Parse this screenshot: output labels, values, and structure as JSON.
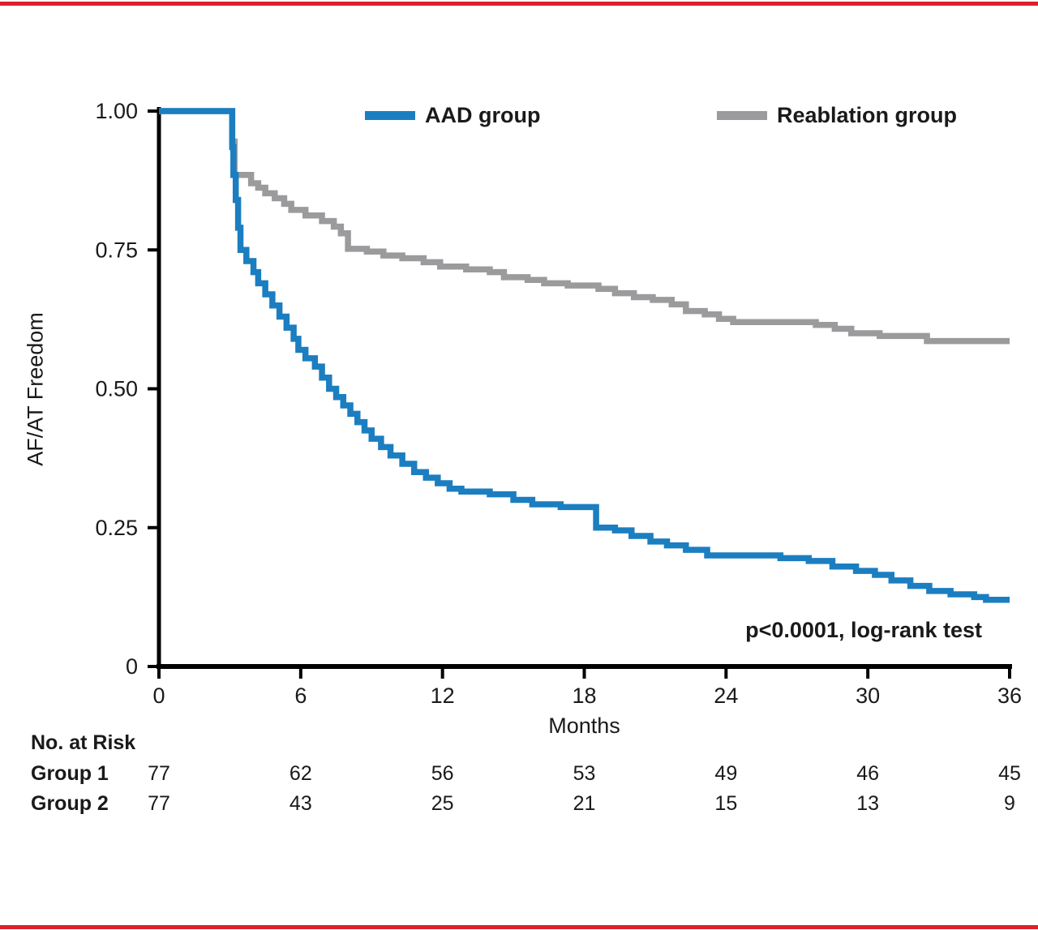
{
  "frame": {
    "background": "#ffffff",
    "top_border_color": "#dc2128",
    "bottom_border_color": "#dc2128"
  },
  "chart_data": {
    "type": "line",
    "variant": "kaplan_meier_step",
    "title": "",
    "xlabel": "Months",
    "ylabel": "AF/AT Freedom",
    "xlim": [
      0,
      36
    ],
    "ylim": [
      0,
      1
    ],
    "grid": false,
    "legend_position": "top-inside",
    "axis_color": "#000000",
    "text_color": "#1a1a1a",
    "annotation": "p<0.0001, log-rank test",
    "x_ticks": [
      0,
      6,
      12,
      18,
      24,
      30,
      36
    ],
    "y_ticks": [
      {
        "value": 1.0,
        "label": "1.00"
      },
      {
        "value": 0.75,
        "label": "0.75"
      },
      {
        "value": 0.5,
        "label": "0.50"
      },
      {
        "value": 0.25,
        "label": "0.25"
      },
      {
        "value": 0,
        "label": "0"
      }
    ],
    "series": [
      {
        "name": "AAD group",
        "color": "#1b7ec0",
        "step": true,
        "points": [
          [
            0,
            1
          ],
          [
            3,
            1
          ],
          [
            3.1,
            0.935
          ],
          [
            3.15,
            0.885
          ],
          [
            3.25,
            0.84
          ],
          [
            3.35,
            0.79
          ],
          [
            3.45,
            0.75
          ],
          [
            3.7,
            0.73
          ],
          [
            4,
            0.71
          ],
          [
            4.2,
            0.69
          ],
          [
            4.5,
            0.67
          ],
          [
            4.8,
            0.65
          ],
          [
            5.1,
            0.63
          ],
          [
            5.4,
            0.61
          ],
          [
            5.7,
            0.59
          ],
          [
            5.9,
            0.57
          ],
          [
            6.2,
            0.555
          ],
          [
            6.6,
            0.54
          ],
          [
            6.9,
            0.52
          ],
          [
            7.2,
            0.5
          ],
          [
            7.5,
            0.485
          ],
          [
            7.8,
            0.47
          ],
          [
            8.1,
            0.455
          ],
          [
            8.4,
            0.44
          ],
          [
            8.7,
            0.425
          ],
          [
            9,
            0.41
          ],
          [
            9.4,
            0.395
          ],
          [
            9.8,
            0.38
          ],
          [
            10.3,
            0.365
          ],
          [
            10.8,
            0.35
          ],
          [
            11.3,
            0.34
          ],
          [
            11.8,
            0.33
          ],
          [
            12.3,
            0.32
          ],
          [
            12.8,
            0.315
          ],
          [
            14,
            0.31
          ],
          [
            15,
            0.3
          ],
          [
            15.8,
            0.292
          ],
          [
            17,
            0.287
          ],
          [
            18.5,
            0.25
          ],
          [
            19.3,
            0.245
          ],
          [
            20,
            0.235
          ],
          [
            20.8,
            0.225
          ],
          [
            21.5,
            0.218
          ],
          [
            22.3,
            0.21
          ],
          [
            23.2,
            0.2
          ],
          [
            26.3,
            0.195
          ],
          [
            27.5,
            0.19
          ],
          [
            28.5,
            0.18
          ],
          [
            29.5,
            0.172
          ],
          [
            30.3,
            0.165
          ],
          [
            31,
            0.155
          ],
          [
            31.8,
            0.145
          ],
          [
            32.6,
            0.136
          ],
          [
            33.5,
            0.13
          ],
          [
            34.5,
            0.125
          ],
          [
            35,
            0.12
          ],
          [
            36,
            0.12
          ]
        ]
      },
      {
        "name": "Reablation group",
        "color": "#9b9b9d",
        "step": true,
        "points": [
          [
            0,
            1
          ],
          [
            3,
            1
          ],
          [
            3.1,
            0.945
          ],
          [
            3.2,
            0.885
          ],
          [
            3.9,
            0.87
          ],
          [
            4.2,
            0.862
          ],
          [
            4.5,
            0.852
          ],
          [
            4.9,
            0.843
          ],
          [
            5.3,
            0.833
          ],
          [
            5.6,
            0.822
          ],
          [
            6.2,
            0.812
          ],
          [
            6.9,
            0.802
          ],
          [
            7.4,
            0.792
          ],
          [
            7.7,
            0.78
          ],
          [
            8,
            0.752
          ],
          [
            8.8,
            0.747
          ],
          [
            9.5,
            0.74
          ],
          [
            10.3,
            0.735
          ],
          [
            11.2,
            0.728
          ],
          [
            11.9,
            0.72
          ],
          [
            13,
            0.715
          ],
          [
            14,
            0.71
          ],
          [
            14.6,
            0.701
          ],
          [
            15.6,
            0.696
          ],
          [
            16.3,
            0.69
          ],
          [
            17.3,
            0.686
          ],
          [
            18.6,
            0.68
          ],
          [
            19.3,
            0.672
          ],
          [
            20.1,
            0.665
          ],
          [
            20.9,
            0.66
          ],
          [
            21.7,
            0.652
          ],
          [
            22.3,
            0.64
          ],
          [
            23.1,
            0.634
          ],
          [
            23.7,
            0.626
          ],
          [
            24.3,
            0.62
          ],
          [
            27.8,
            0.615
          ],
          [
            28.6,
            0.608
          ],
          [
            29.3,
            0.6
          ],
          [
            30.5,
            0.595
          ],
          [
            32.5,
            0.586
          ],
          [
            36,
            0.586
          ]
        ]
      }
    ]
  },
  "risk_table": {
    "title": "No. at Risk",
    "columns_months": [
      0,
      6,
      12,
      18,
      24,
      30,
      36
    ],
    "rows": [
      {
        "label": "Group 1",
        "values": [
          "77",
          "62",
          "56",
          "53",
          "49",
          "46",
          "45"
        ]
      },
      {
        "label": "Group 2",
        "values": [
          "77",
          "43",
          "25",
          "21",
          "15",
          "13",
          "9"
        ]
      }
    ]
  }
}
